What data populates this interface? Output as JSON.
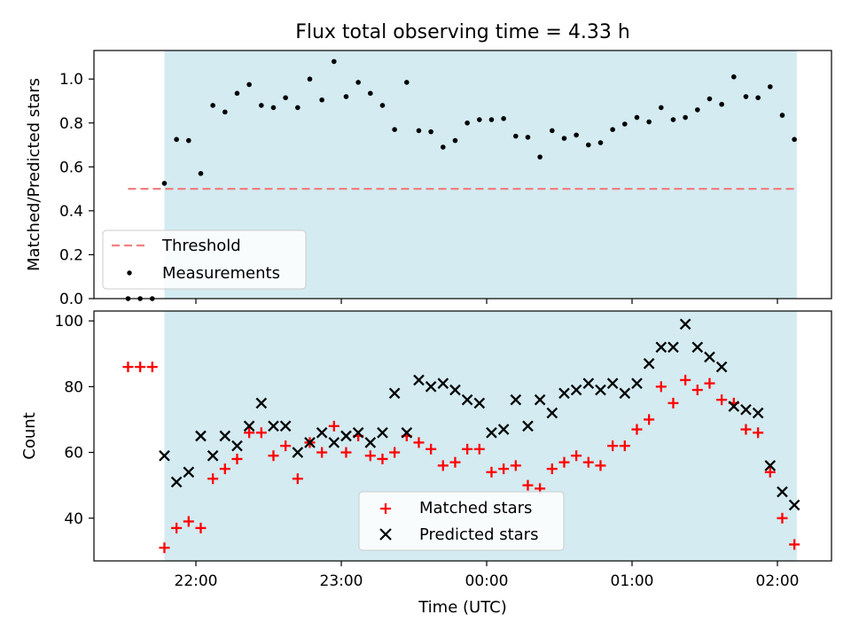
{
  "title": "Flux total observing time = 4.33 h",
  "colors": {
    "shade": "#d3ebf1",
    "threshold": "#f08080",
    "measurement": "#000000",
    "matched": "#ff0000",
    "predicted": "#000000"
  },
  "chart_data": [
    {
      "type": "scatter",
      "panel": "top",
      "ylabel": "Matched/Predicted stars",
      "ylim": [
        0,
        1.13
      ],
      "y_ticks": [
        "0.0",
        "0.2",
        "0.4",
        "0.6",
        "0.8",
        "1.0"
      ],
      "y_tick_values": [
        0,
        0.2,
        0.4,
        0.6,
        0.8,
        1.0
      ],
      "observing_window": [
        "21:47",
        "02:08"
      ],
      "threshold": {
        "name": "Threshold",
        "value": 0.5,
        "x_range": [
          "21:32",
          "02:08"
        ]
      },
      "series": [
        {
          "name": "Measurements",
          "x": [
            "21:32",
            "21:37",
            "21:42",
            "21:47",
            "21:52",
            "21:57",
            "22:02",
            "22:07",
            "22:12",
            "22:17",
            "22:22",
            "22:27",
            "22:32",
            "22:37",
            "22:42",
            "22:47",
            "22:52",
            "22:57",
            "23:02",
            "23:07",
            "23:12",
            "23:17",
            "23:22",
            "23:27",
            "23:32",
            "23:37",
            "23:42",
            "23:47",
            "23:52",
            "23:57",
            "00:02",
            "00:07",
            "00:12",
            "00:17",
            "00:22",
            "00:27",
            "00:32",
            "00:37",
            "00:42",
            "00:47",
            "00:52",
            "00:57",
            "01:02",
            "01:07",
            "01:12",
            "01:17",
            "01:22",
            "01:27",
            "01:32",
            "01:37",
            "01:42",
            "01:47",
            "01:52",
            "01:57",
            "02:02",
            "02:07"
          ],
          "values": [
            0.0,
            0.0,
            0.0,
            0.525,
            0.725,
            0.72,
            0.57,
            0.88,
            0.85,
            0.935,
            0.975,
            0.88,
            0.87,
            0.915,
            0.87,
            1.0,
            0.905,
            1.08,
            0.92,
            0.985,
            0.935,
            0.88,
            0.77,
            0.985,
            0.765,
            0.76,
            0.69,
            0.72,
            0.8,
            0.815,
            0.815,
            0.82,
            0.74,
            0.735,
            0.645,
            0.765,
            0.73,
            0.745,
            0.7,
            0.71,
            0.77,
            0.795,
            0.825,
            0.805,
            0.87,
            0.815,
            0.825,
            0.86,
            0.91,
            0.885,
            1.01,
            0.92,
            0.915,
            0.965,
            0.835,
            0.725
          ]
        }
      ]
    },
    {
      "type": "scatter",
      "panel": "bottom",
      "xlabel": "Time (UTC)",
      "ylabel": "Count",
      "ylim": [
        27,
        103
      ],
      "y_ticks": [
        "40",
        "60",
        "80",
        "100"
      ],
      "y_tick_values": [
        40,
        60,
        80,
        100
      ],
      "x_ticks": [
        "22:00",
        "23:00",
        "00:00",
        "01:00",
        "02:00"
      ],
      "observing_window": [
        "21:47",
        "02:08"
      ],
      "series": [
        {
          "name": "Matched stars",
          "x": [
            "21:32",
            "21:37",
            "21:42",
            "21:47",
            "21:52",
            "21:57",
            "22:02",
            "22:07",
            "22:12",
            "22:17",
            "22:22",
            "22:27",
            "22:32",
            "22:37",
            "22:42",
            "22:47",
            "22:52",
            "22:57",
            "23:02",
            "23:07",
            "23:12",
            "23:17",
            "23:22",
            "23:27",
            "23:32",
            "23:37",
            "23:42",
            "23:47",
            "23:52",
            "23:57",
            "00:02",
            "00:07",
            "00:12",
            "00:17",
            "00:22",
            "00:27",
            "00:32",
            "00:37",
            "00:42",
            "00:47",
            "00:52",
            "00:57",
            "01:02",
            "01:07",
            "01:12",
            "01:17",
            "01:22",
            "01:27",
            "01:32",
            "01:37",
            "01:42",
            "01:47",
            "01:52",
            "01:57",
            "02:02",
            "02:07"
          ],
          "values": [
            86,
            86,
            86,
            31,
            37,
            39,
            37,
            52,
            55,
            58,
            66,
            66,
            59,
            62,
            52,
            63,
            60,
            68,
            60,
            65,
            59,
            58,
            60,
            65,
            63,
            61,
            56,
            57,
            61,
            61,
            54,
            55,
            56,
            50,
            49,
            55,
            57,
            59,
            57,
            56,
            62,
            62,
            67,
            70,
            80,
            75,
            82,
            79,
            81,
            76,
            75,
            67,
            66,
            54,
            40,
            32
          ]
        },
        {
          "name": "Predicted stars",
          "x": [
            "21:47",
            "21:52",
            "21:57",
            "22:02",
            "22:07",
            "22:12",
            "22:17",
            "22:22",
            "22:27",
            "22:32",
            "22:37",
            "22:42",
            "22:47",
            "22:52",
            "22:57",
            "23:02",
            "23:07",
            "23:12",
            "23:17",
            "23:22",
            "23:27",
            "23:32",
            "23:37",
            "23:42",
            "23:47",
            "23:52",
            "23:57",
            "00:02",
            "00:07",
            "00:12",
            "00:17",
            "00:22",
            "00:27",
            "00:32",
            "00:37",
            "00:42",
            "00:47",
            "00:52",
            "00:57",
            "01:02",
            "01:07",
            "01:12",
            "01:17",
            "01:22",
            "01:27",
            "01:32",
            "01:37",
            "01:42",
            "01:47",
            "01:52",
            "01:57",
            "02:02",
            "02:07"
          ],
          "values": [
            59,
            51,
            54,
            65,
            59,
            65,
            62,
            68,
            75,
            68,
            68,
            60,
            63,
            66,
            63,
            65,
            66,
            63,
            66,
            78,
            66,
            82,
            80,
            81,
            79,
            76,
            75,
            66,
            67,
            76,
            68,
            76,
            72,
            78,
            79,
            81,
            79,
            81,
            78,
            81,
            87,
            92,
            92,
            99,
            92,
            89,
            86,
            74,
            73,
            72,
            56,
            48,
            44
          ]
        }
      ]
    }
  ]
}
